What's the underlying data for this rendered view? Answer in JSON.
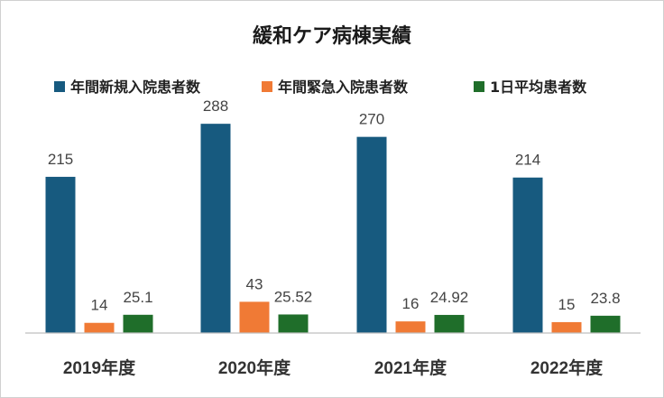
{
  "chart_data": {
    "type": "bar",
    "title": "緩和ケア病棟実績",
    "categories": [
      "2019年度",
      "2020年度",
      "2021年度",
      "2022年度"
    ],
    "series": [
      {
        "name": "年間新規入院患者数",
        "color": "#175a7f",
        "values": [
          215,
          288,
          270,
          214
        ],
        "labels": [
          "215",
          "288",
          "270",
          "214"
        ]
      },
      {
        "name": "年間緊急入院患者数",
        "color": "#f07a35",
        "values": [
          14,
          43,
          16,
          15
        ],
        "labels": [
          "14",
          "43",
          "16",
          "15"
        ]
      },
      {
        "name": "1日平均患者数",
        "color": "#1f6e2a",
        "values": [
          25.1,
          25.52,
          24.92,
          23.8
        ],
        "labels": [
          "25.1",
          "25.52",
          "24.92",
          "23.8"
        ]
      }
    ],
    "xlabel": "",
    "ylabel": "",
    "ylim": [
      0,
      400
    ],
    "grid": false,
    "legend": "top"
  }
}
